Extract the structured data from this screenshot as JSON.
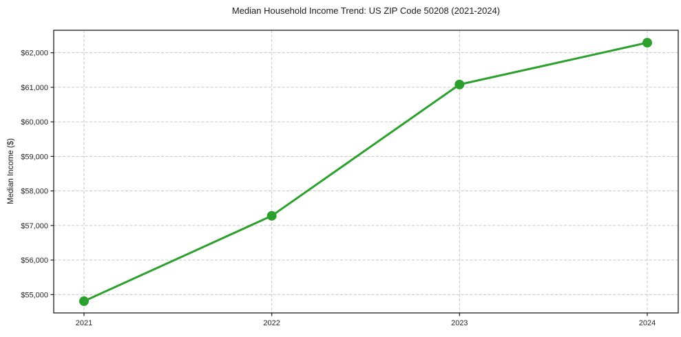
{
  "chart_data": {
    "type": "line",
    "title": "Median Household Income Trend: US ZIP Code 50208 (2021-2024)",
    "xlabel": "",
    "ylabel": "Median Income ($)",
    "categories": [
      "2021",
      "2022",
      "2023",
      "2024"
    ],
    "series": [
      {
        "name": "Median Household Income",
        "values": [
          54810,
          57280,
          61080,
          62290
        ]
      }
    ],
    "y_ticks": {
      "values": [
        55000,
        56000,
        57000,
        58000,
        59000,
        60000,
        61000,
        62000
      ],
      "labels": [
        "$55,000",
        "$56,000",
        "$57,000",
        "$58,000",
        "$59,000",
        "$60,000",
        "$61,000",
        "$62,000"
      ]
    },
    "ylim": [
      54470,
      62650
    ],
    "grid": {
      "visible": true,
      "style": "dashed",
      "color": "#c6c6c6"
    },
    "legend_position": "none",
    "axes_box": true,
    "colors": {
      "line": "#2ca02c",
      "marker": "#2ca02c",
      "spine": "#1a1a1a",
      "tick_text": "#262626",
      "background": "#ffffff"
    },
    "marker_shape": "circle"
  }
}
